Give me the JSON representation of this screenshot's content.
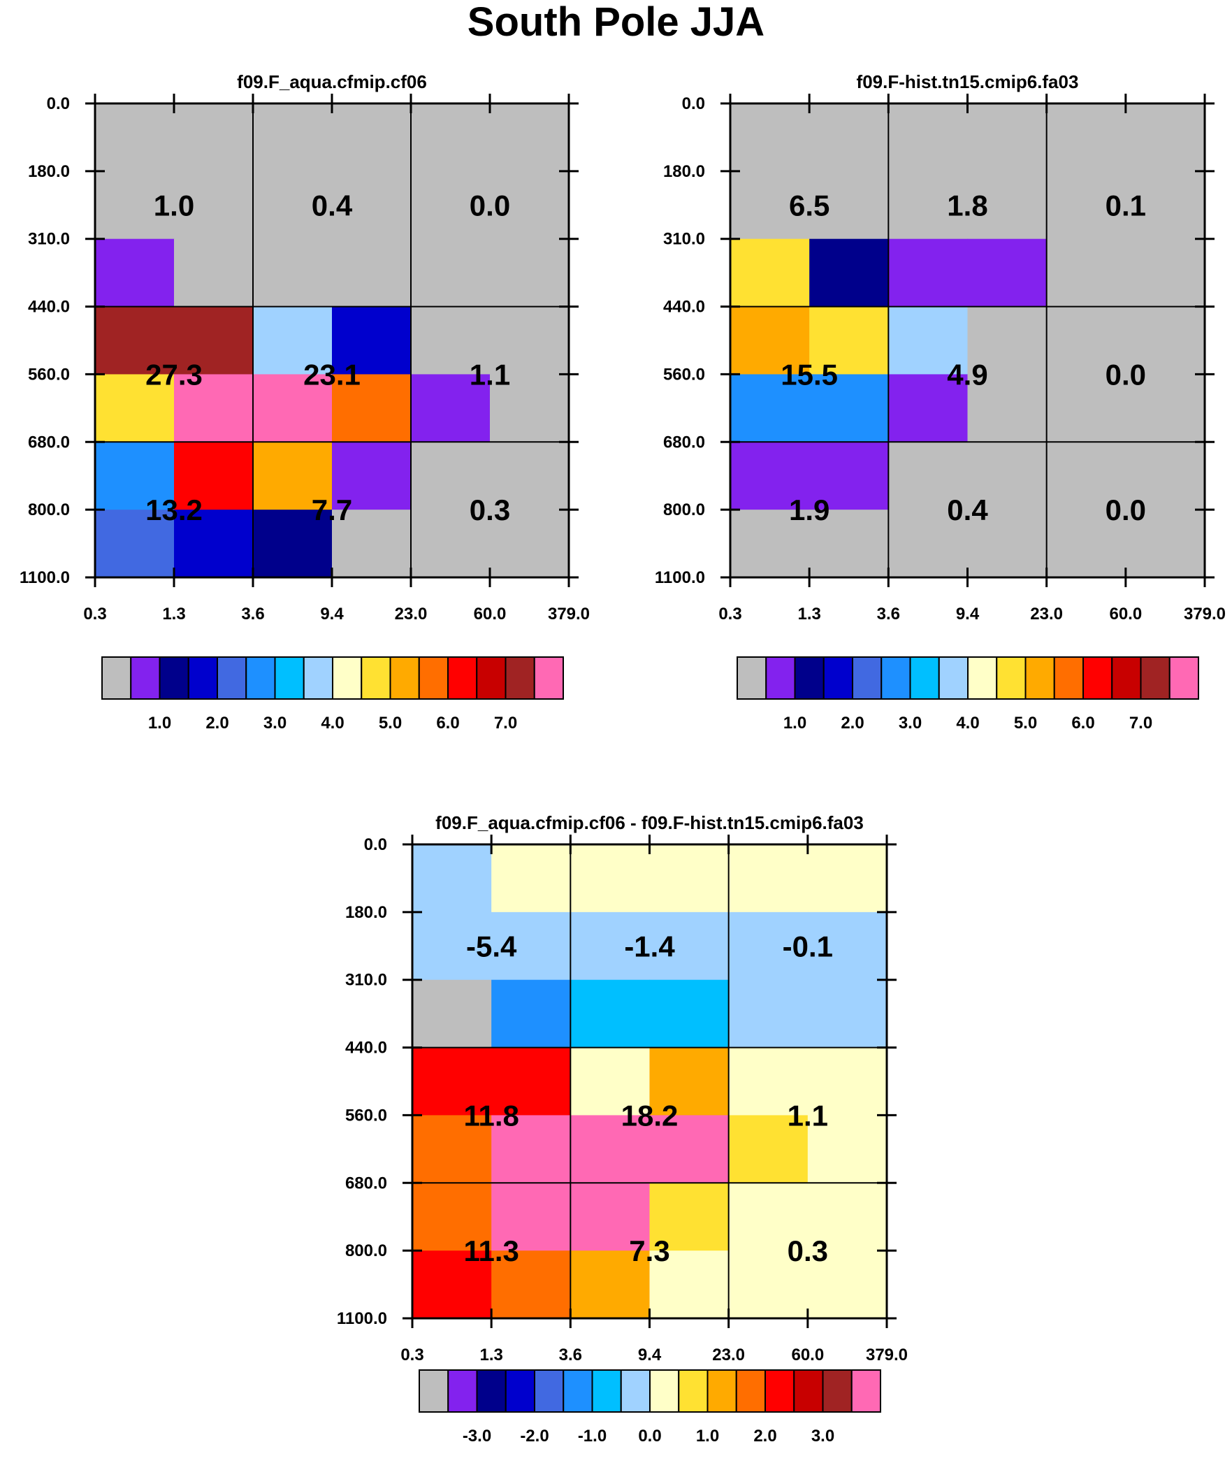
{
  "page_title": "South Pole JJA",
  "chart_data": [
    {
      "type": "heatmap",
      "title": "f09.F_aqua.cfmip.cf06",
      "x_ticks": [
        "0.3",
        "1.3",
        "3.6",
        "9.4",
        "23.0",
        "60.0",
        "379.0"
      ],
      "y_ticks": [
        "0.0",
        "180.0",
        "310.0",
        "440.0",
        "560.0",
        "680.0",
        "800.0",
        "1100.0"
      ],
      "cells": [
        [
          "gray",
          "gray",
          "gray",
          "gray",
          "gray",
          "gray"
        ],
        [
          "gray",
          "gray",
          "gray",
          "gray",
          "gray",
          "gray"
        ],
        [
          "purple",
          "gray",
          "gray",
          "gray",
          "gray",
          "gray"
        ],
        [
          "darkred",
          "darkred",
          "lightblue",
          "blue",
          "gray",
          "gray"
        ],
        [
          "yellow",
          "pink",
          "pink",
          "orange",
          "purple",
          "gray"
        ],
        [
          "dodgerblue",
          "red",
          "amber",
          "purple",
          "gray",
          "gray"
        ],
        [
          "royalblue",
          "blue",
          "navy",
          "gray",
          "gray",
          "gray"
        ]
      ],
      "block_values": [
        [
          "1.0",
          "0.4",
          "0.0"
        ],
        [
          "27.3",
          "23.1",
          "1.1"
        ],
        [
          "13.2",
          "7.7",
          "0.3"
        ]
      ],
      "colorbar_labels": [
        "1.0",
        "2.0",
        "3.0",
        "4.0",
        "5.0",
        "6.0",
        "7.0"
      ]
    },
    {
      "type": "heatmap",
      "title": "f09.F-hist.tn15.cmip6.fa03",
      "x_ticks": [
        "0.3",
        "1.3",
        "3.6",
        "9.4",
        "23.0",
        "60.0",
        "379.0"
      ],
      "y_ticks": [
        "0.0",
        "180.0",
        "310.0",
        "440.0",
        "560.0",
        "680.0",
        "800.0",
        "1100.0"
      ],
      "cells": [
        [
          "gray",
          "gray",
          "gray",
          "gray",
          "gray",
          "gray"
        ],
        [
          "gray",
          "gray",
          "gray",
          "gray",
          "gray",
          "gray"
        ],
        [
          "yellow",
          "navy",
          "purple",
          "purple",
          "gray",
          "gray"
        ],
        [
          "amber",
          "yellow",
          "lightblue",
          "gray",
          "gray",
          "gray"
        ],
        [
          "dodgerblue",
          "dodgerblue",
          "purple",
          "gray",
          "gray",
          "gray"
        ],
        [
          "purple",
          "purple",
          "gray",
          "gray",
          "gray",
          "gray"
        ],
        [
          "gray",
          "gray",
          "gray",
          "gray",
          "gray",
          "gray"
        ]
      ],
      "block_values": [
        [
          "6.5",
          "1.8",
          "0.1"
        ],
        [
          "15.5",
          "4.9",
          "0.0"
        ],
        [
          "1.9",
          "0.4",
          "0.0"
        ]
      ],
      "colorbar_labels": [
        "1.0",
        "2.0",
        "3.0",
        "4.0",
        "5.0",
        "6.0",
        "7.0"
      ]
    },
    {
      "type": "heatmap",
      "title": "f09.F_aqua.cfmip.cf06 - f09.F-hist.tn15.cmip6.fa03",
      "x_ticks": [
        "0.3",
        "1.3",
        "3.6",
        "9.4",
        "23.0",
        "60.0",
        "379.0"
      ],
      "y_ticks": [
        "0.0",
        "180.0",
        "310.0",
        "440.0",
        "560.0",
        "680.0",
        "800.0",
        "1100.0"
      ],
      "cells": [
        [
          "lightblue",
          "cream",
          "cream",
          "cream",
          "cream",
          "cream"
        ],
        [
          "lightblue",
          "lightblue",
          "lightblue",
          "lightblue",
          "lightblue",
          "lightblue"
        ],
        [
          "gray",
          "dodgerblue",
          "deepsky",
          "deepsky",
          "lightblue",
          "lightblue"
        ],
        [
          "red",
          "red",
          "cream",
          "amber",
          "cream",
          "cream"
        ],
        [
          "orange",
          "pink",
          "pink",
          "pink",
          "yellow",
          "cream"
        ],
        [
          "orange",
          "pink",
          "pink",
          "yellow",
          "cream",
          "cream"
        ],
        [
          "red",
          "orange",
          "amber",
          "cream",
          "cream",
          "cream"
        ]
      ],
      "block_values": [
        [
          "-5.4",
          "-1.4",
          "-0.1"
        ],
        [
          "11.8",
          "18.2",
          "1.1"
        ],
        [
          "11.3",
          "7.3",
          "0.3"
        ]
      ],
      "colorbar_labels": [
        "-3.0",
        "-2.0",
        "-1.0",
        "0.0",
        "1.0",
        "2.0",
        "3.0"
      ]
    }
  ],
  "palette": {
    "gray": "#BEBEBE",
    "purple": "#8322EE",
    "navy": "#00008B",
    "blue": "#0000CD",
    "royalblue": "#4169E1",
    "dodgerblue": "#1E90FF",
    "deepsky": "#00BFFF",
    "lightblue": "#A0D2FF",
    "cream": "#FFFFC8",
    "yellow": "#FFE132",
    "amber": "#FFAA00",
    "orange": "#FF6E00",
    "red": "#FF0000",
    "crimson": "#C80000",
    "darkred": "#A02323",
    "pink": "#FF69B4"
  },
  "colorbar_swatches": [
    "gray",
    "purple",
    "navy",
    "blue",
    "royalblue",
    "dodgerblue",
    "deepsky",
    "lightblue",
    "cream",
    "yellow",
    "amber",
    "orange",
    "red",
    "crimson",
    "darkred",
    "pink"
  ]
}
